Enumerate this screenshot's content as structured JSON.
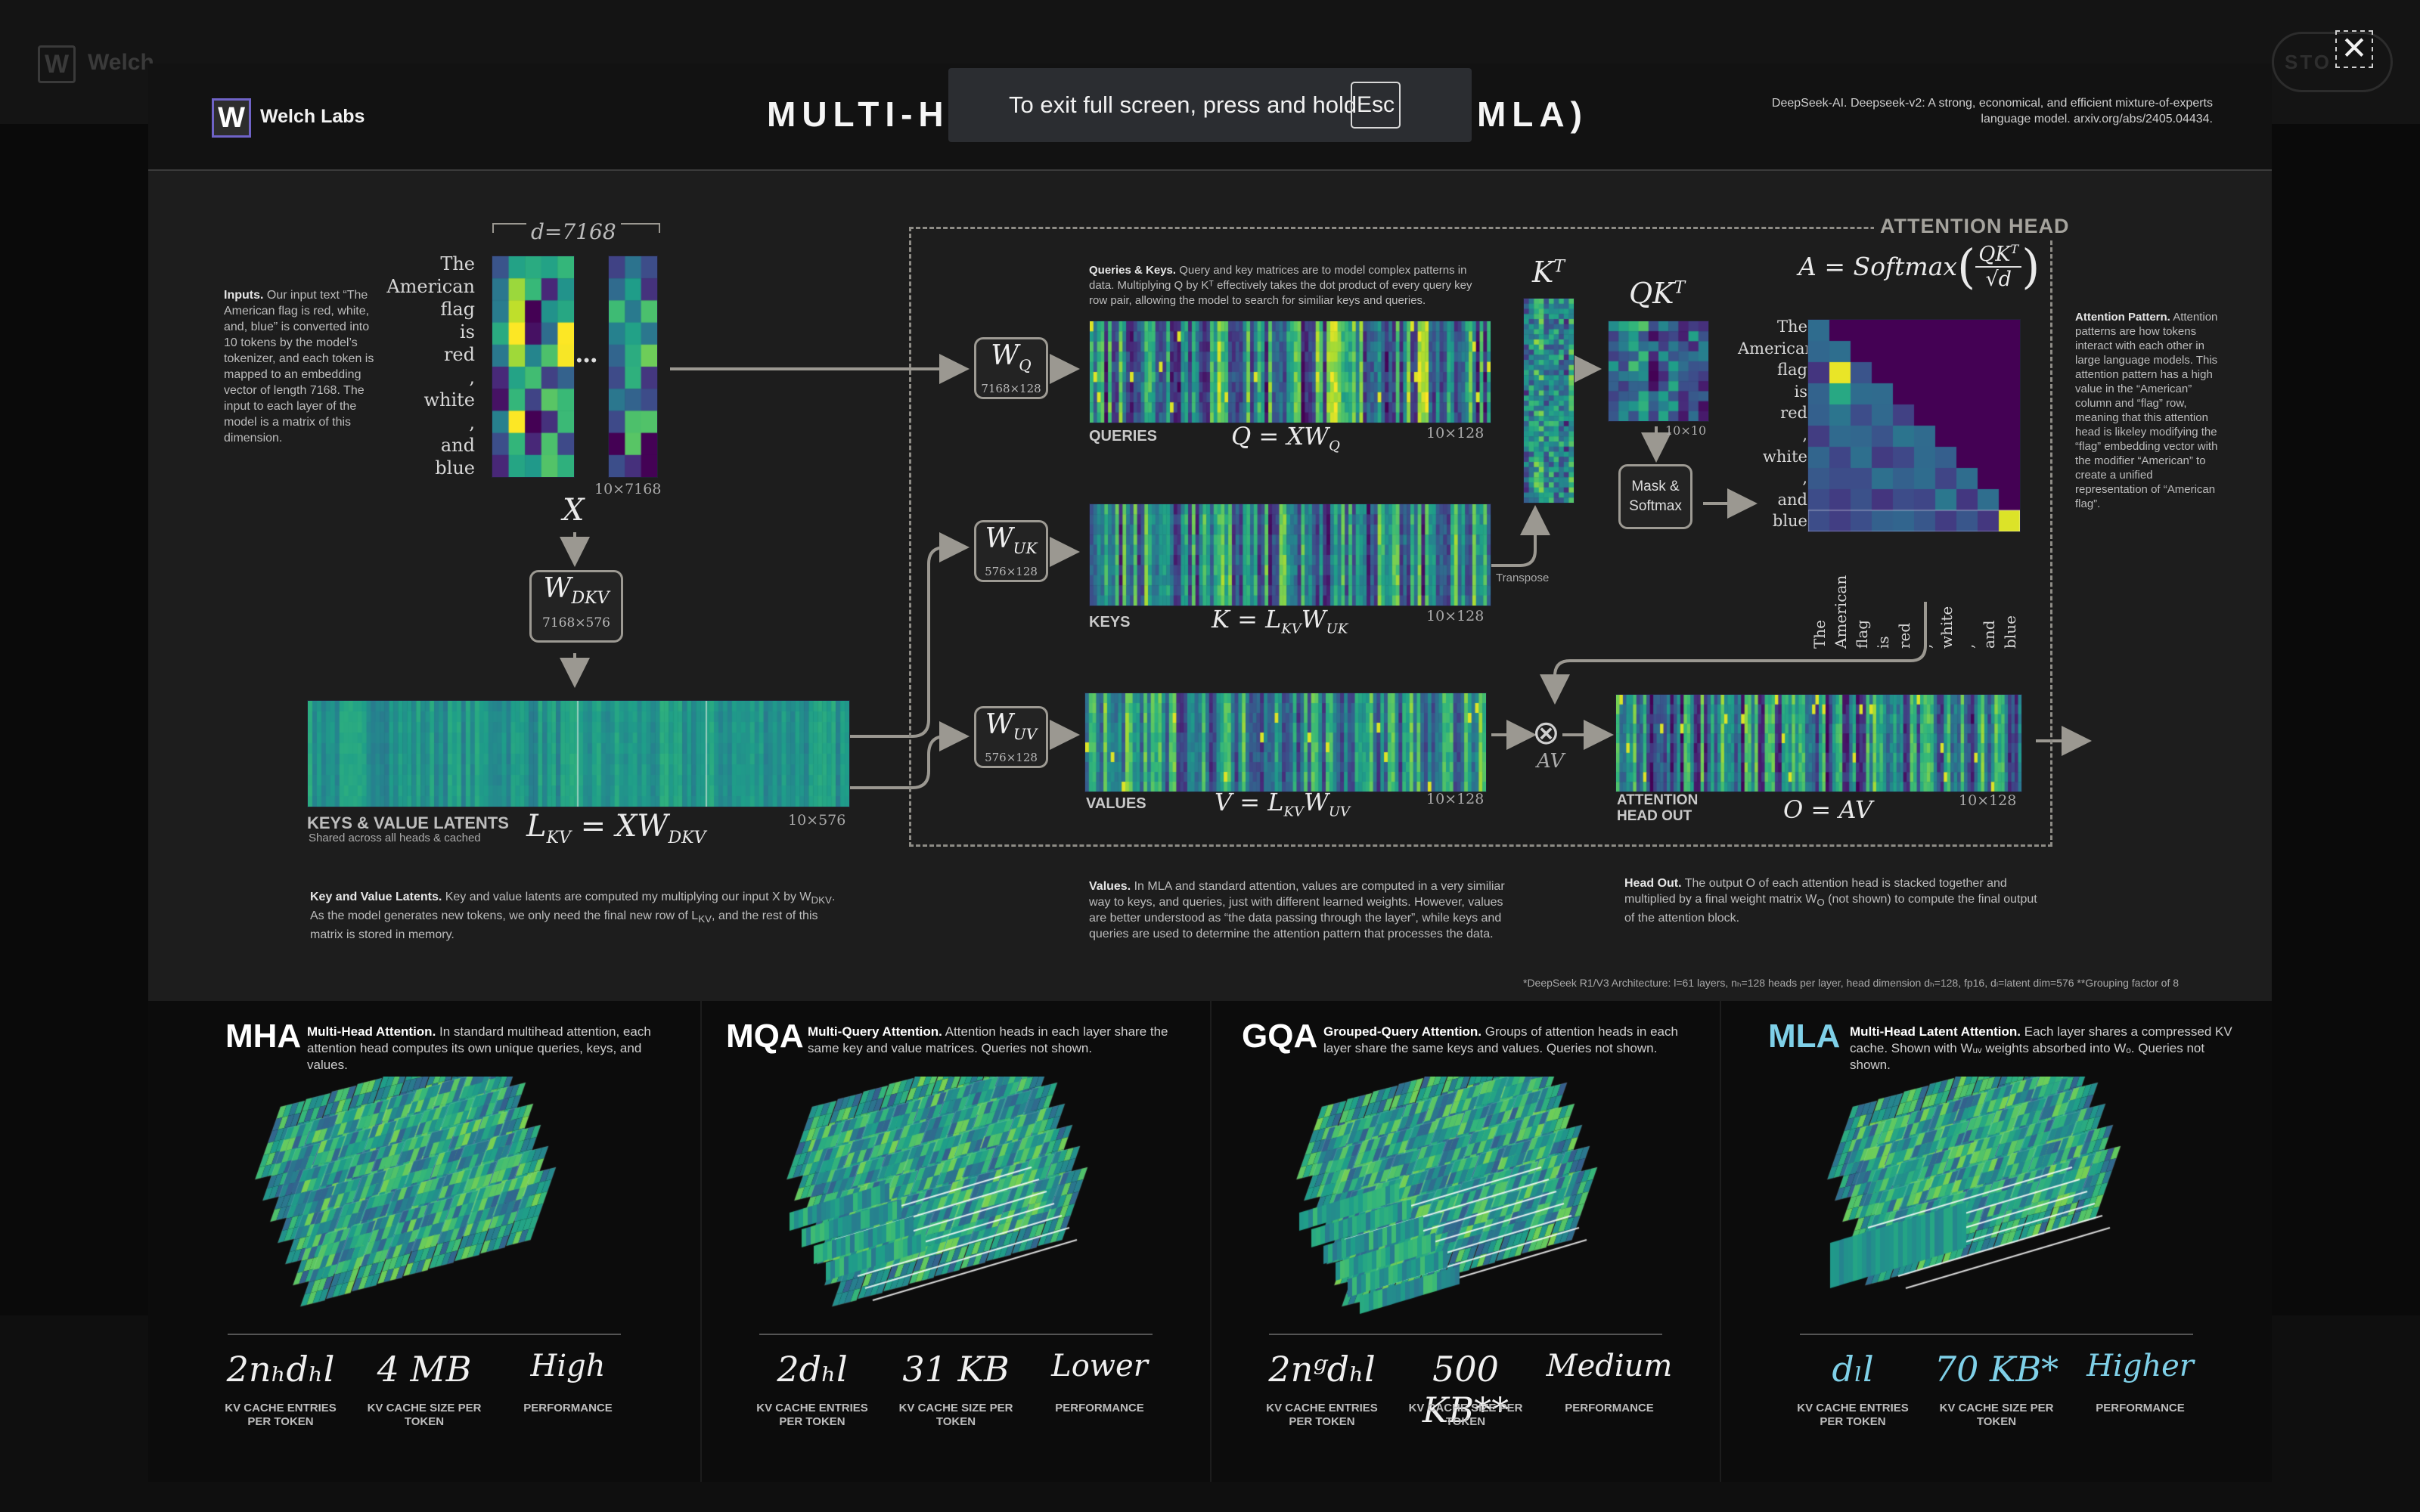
{
  "window": {
    "ghost_brand": "Welch",
    "ghost_button": "STO",
    "close_icon": "✕"
  },
  "banner": {
    "text": "To exit full screen, press and hold",
    "key": "Esc"
  },
  "header": {
    "logo_letter": "W",
    "brand": "Welch Labs",
    "title": "MULTI-H",
    "title_end": "N (MLA)",
    "citation": "DeepSeek-AI. Deepseek-v2: A strong, economical, and efficient mixture-of-experts language model. arxiv.org/abs/2405.04434."
  },
  "inputs": {
    "title": "Inputs.",
    "text": "Our input text “The American flag is red, white, and, blue” is converted into 10 tokens by the model’s tokenizer, and each token is mapped to an embedding vector of length 7168. The input to each layer of the model is a matrix of this dimension.",
    "tokens": [
      "The",
      "American",
      "flag",
      "is",
      "red",
      ",",
      "white",
      ",",
      "and",
      "blue"
    ],
    "d_label": "d=7168",
    "dots": "•••",
    "dim": "10×7168",
    "x": "X"
  },
  "wdkv": {
    "w": "W",
    "sub": "DKV",
    "dim": "7168×576"
  },
  "latents": {
    "label": "KEYS & VALUE LATENTS",
    "sublabel": "Shared across all heads & cached",
    "eq": "L",
    "eq_sub": "KV",
    "eq_rest": " = XW",
    "eq_rest_sub": "DKV",
    "dim": "10×576",
    "note_title": "Key and Value Latents.",
    "note": "Key and value latents are computed my multiplying our input X by W",
    "note_sub": "DKV",
    "note2": ". As the model generates new tokens, we only need the final new row of L",
    "note_sub2": "KV",
    "note3": ", and the rest of this matrix is stored in memory."
  },
  "qk_note": {
    "title": "Queries & Keys.",
    "text": "Query and key matrices are  to model complex patterns in data. Multiplying Q by Kᵀ effectively takes the dot product of every query key row pair, allowing the model to search for similiar keys and queries."
  },
  "wq": {
    "w": "W",
    "sub": "Q",
    "dim": "7168×128"
  },
  "wuk": {
    "w": "W",
    "sub": "UK",
    "dim": "576×128"
  },
  "wuv": {
    "w": "W",
    "sub": "UV",
    "dim": "576×128"
  },
  "queries": {
    "label": "QUERIES",
    "eq": "Q = XW",
    "eq_sub": "Q",
    "dim": "10×128"
  },
  "keys": {
    "label": "KEYS",
    "eq": "K = L",
    "eq_sub": "KV",
    "eq_rest": "W",
    "eq_rest_sub": "UK",
    "dim": "10×128",
    "transpose": "Transpose"
  },
  "values": {
    "label": "VALUES",
    "eq": "V = L",
    "eq_sub": "KV",
    "eq_rest": "W",
    "eq_rest_sub": "UV",
    "dim": "10×128",
    "note_title": "Values.",
    "note": "In MLA and standard attention, values are computed in a very similiar way to keys, and queries, just with different learned weights. However, values are better understood as “the data passing through the layer”, while keys and queries are used to determine the attention pattern that processes the data."
  },
  "kt": {
    "label": "K",
    "sup": "T"
  },
  "qkt": {
    "label": "QK",
    "sup": "T",
    "dim": "10×10"
  },
  "mask": {
    "line1": "Mask &",
    "line2": "Softmax"
  },
  "softmax_eq": {
    "a": "A = Softmax",
    "num": "QK",
    "num_sup": "T",
    "den": "√d"
  },
  "attention_head": {
    "label": "ATTENTION HEAD"
  },
  "pattern": {
    "title": "Attention Pattern.",
    "text": "Attention patterns are how tokens interact with each other in large language models. This attention pattern has a high value in the “American” column and “flag” row, meaning that this attention head is likeley modifying the “flag” embedding vector with the modifier “American” to create a unified representation of “American flag”."
  },
  "av": {
    "symbol": "⊗",
    "label": "AV"
  },
  "head_out": {
    "label1": "ATTENTION",
    "label2": "HEAD OUT",
    "eq": "O = AV",
    "dim": "10×128",
    "note_title": "Head Out.",
    "note": "The output O of each attention head is stacked together and multiplied by a final weight matrix W",
    "note_sub": "O",
    "note2": " (not shown) to compute the final output of the attention block."
  },
  "footnote": "*DeepSeek R1/V3 Architecture: l=61 layers, nₕ=128 heads per layer, head dimension dₕ=128, fp16, dₗ=latent dim=576   **Grouping factor of 8",
  "panels": [
    {
      "abbr": "MHA",
      "title": "Multi-Head Attention.",
      "desc": "In standard multihead attention, each attention head computes its own unique queries, keys, and values.",
      "entries": "2nₕdₕl",
      "size": "4 MB",
      "perf": "High",
      "cap1": "KV CACHE ENTRIES PER TOKEN",
      "cap2": "KV CACHE SIZE PER TOKEN",
      "cap3": "PERFORMANCE"
    },
    {
      "abbr": "MQA",
      "title": "Multi-Query Attention.",
      "desc": "Attention heads in each layer share the same key and value matrices. Queries not shown.",
      "entries": "2dₕl",
      "size": "31 KB",
      "perf": "Lower",
      "cap1": "KV CACHE ENTRIES PER TOKEN",
      "cap2": "KV CACHE SIZE PER TOKEN",
      "cap3": "PERFORMANCE"
    },
    {
      "abbr": "GQA",
      "title": "Grouped-Query Attention.",
      "desc": "Groups of attention heads in each layer share the same keys and values. Queries not shown.",
      "entries": "2nᵍdₕl",
      "size": "500 KB**",
      "perf": "Medium",
      "cap1": "KV CACHE ENTRIES PER TOKEN",
      "cap2": "KV CACHE SIZE PER TOKEN",
      "cap3": "PERFORMANCE"
    },
    {
      "abbr": "MLA",
      "title": "Multi-Head Latent Attention.",
      "desc": "Each layer shares a compressed KV cache. Shown with Wᵤᵥ weights absorbed into Wₒ. Queries not shown.",
      "entries": "dₗl",
      "size": "70 KB*",
      "perf": "Higher",
      "cap1": "KV CACHE ENTRIES PER TOKEN",
      "cap2": "KV CACHE SIZE PER TOKEN",
      "cap3": "PERFORMANCE"
    }
  ]
}
